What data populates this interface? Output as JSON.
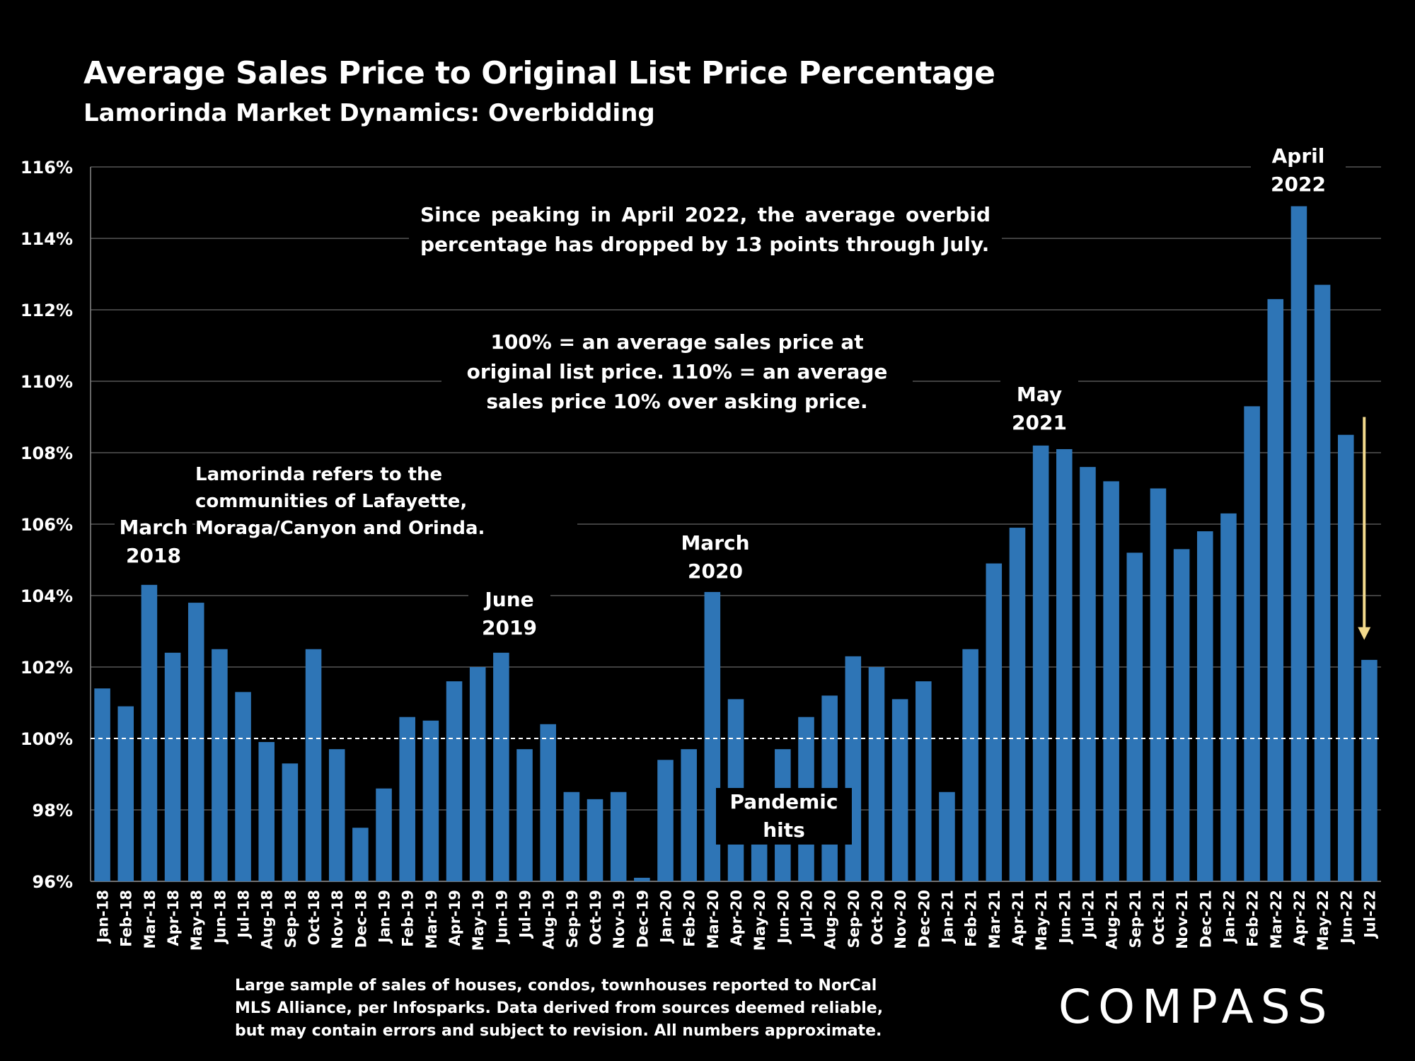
{
  "title": "Average Sales Price to Original List Price Percentage",
  "subtitle": "Lamorinda Market Dynamics: Overbidding",
  "notes": {
    "peak": "Since peaking in April 2022, the average overbid percentage has dropped by 13 points through July.",
    "definition": "100% = an average sales price at original list price. 110% = an average sales price 10% over asking price.",
    "lamorinda": "Lamorinda refers to the communities of Lafayette, Moraga/Canyon and Orinda."
  },
  "annotations": {
    "march2018": [
      "March",
      "2018"
    ],
    "june2019": [
      "June",
      "2019"
    ],
    "march2020": [
      "March",
      "2020"
    ],
    "pandemic": [
      "Pandemic",
      "hits"
    ],
    "may2021": [
      "May",
      "2021"
    ],
    "april2022": [
      "April",
      "2022"
    ]
  },
  "footnote": "Large sample of sales of houses, condos, townhouses reported to NorCal MLS Alliance, per Infosparks. Data derived from sources deemed reliable, but may contain errors and subject to revision. All numbers approximate.",
  "logo": "COMPASS",
  "colors": {
    "bar": "#2E75B6",
    "arrow": "#F2D98C",
    "reference_line": "#ffffff",
    "grid": "#555555"
  },
  "chart_data": {
    "type": "bar",
    "ylim": [
      96,
      116
    ],
    "ytick_labels": [
      "96%",
      "98%",
      "100%",
      "102%",
      "104%",
      "106%",
      "108%",
      "110%",
      "112%",
      "114%",
      "116%"
    ],
    "reference_line": 100,
    "grid": true,
    "categories": [
      "Jan-18",
      "Feb-18",
      "Mar-18",
      "Apr-18",
      "May-18",
      "Jun-18",
      "Jul-18",
      "Aug-18",
      "Sep-18",
      "Oct-18",
      "Nov-18",
      "Dec-18",
      "Jan-19",
      "Feb-19",
      "Mar-19",
      "Apr-19",
      "May-19",
      "Jun-19",
      "Jul-19",
      "Aug-19",
      "Sep-19",
      "Oct-19",
      "Nov-19",
      "Dec-19",
      "Jan-20",
      "Feb-20",
      "Mar-20",
      "Apr-20",
      "May-20",
      "Jun-20",
      "Jul-20",
      "Aug-20",
      "Sep-20",
      "Oct-20",
      "Nov-20",
      "Dec-20",
      "Jan-21",
      "Feb-21",
      "Mar-21",
      "Apr-21",
      "May-21",
      "Jun-21",
      "Jul-21",
      "Aug-21",
      "Sep-21",
      "Oct-21",
      "Nov-21",
      "Dec-21",
      "Jan-22",
      "Feb-22",
      "Mar-22",
      "Apr-22",
      "May-22",
      "Jun-22",
      "Jul-22"
    ],
    "values": [
      101.4,
      100.9,
      104.3,
      102.4,
      103.8,
      102.5,
      101.3,
      99.9,
      99.3,
      102.5,
      99.7,
      97.5,
      98.6,
      100.6,
      100.5,
      101.6,
      102.0,
      102.4,
      99.7,
      100.4,
      98.5,
      98.3,
      98.5,
      96.1,
      99.4,
      99.7,
      104.1,
      101.1,
      97.5,
      99.7,
      100.6,
      101.2,
      102.3,
      102.0,
      101.1,
      101.6,
      98.5,
      102.5,
      104.9,
      105.9,
      108.2,
      108.1,
      107.6,
      107.2,
      105.2,
      107.0,
      105.3,
      105.8,
      106.3,
      109.3,
      112.3,
      114.9,
      112.7,
      108.5,
      102.2
    ]
  }
}
